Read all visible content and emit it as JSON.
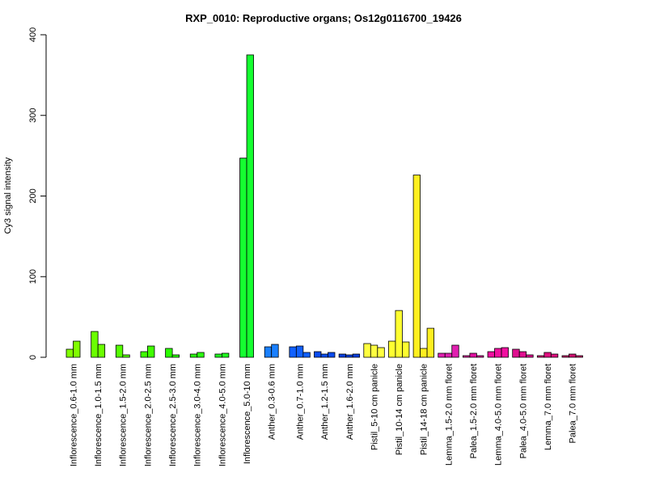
{
  "chart_data": {
    "type": "bar",
    "title": "RXP_0010: Reproductive organs; Os12g0116700_19426",
    "xlabel": "",
    "ylabel": "Cy3 signal intensity",
    "ylim": [
      0,
      400
    ],
    "yticks": [
      0,
      100,
      200,
      300,
      400
    ],
    "grid": false,
    "legend": "none",
    "groups": [
      {
        "label": "Inflorescence_0.6-1.0 mm",
        "color": "#80ff00",
        "values": [
          10,
          20
        ]
      },
      {
        "label": "Inflorescence_1.0-1.5 mm",
        "color": "#6aff00",
        "values": [
          32,
          16
        ]
      },
      {
        "label": "Inflorescence_1.5-2.0 mm",
        "color": "#55ff00",
        "values": [
          15,
          3
        ]
      },
      {
        "label": "Inflorescence_2.0-2.5 mm",
        "color": "#40ff00",
        "values": [
          7,
          14
        ]
      },
      {
        "label": "Inflorescence_2.5-3.0 mm",
        "color": "#2bff00",
        "values": [
          11,
          3
        ]
      },
      {
        "label": "Inflorescence_3.0-4.0 mm",
        "color": "#2bff10",
        "values": [
          4,
          6
        ]
      },
      {
        "label": "Inflorescence_4.0-5.0 mm",
        "color": "#20ff20",
        "values": [
          4,
          5
        ]
      },
      {
        "label": "Inflorescence_5.0-10 mm",
        "color": "#15ff30",
        "values": [
          247,
          375
        ]
      },
      {
        "label": "Anther_0.3-0.6 mm",
        "color": "#1a80ff",
        "values": [
          13,
          16
        ]
      },
      {
        "label": "Anther_0.7-1.0 mm",
        "color": "#1060ff",
        "values": [
          13,
          14,
          6
        ]
      },
      {
        "label": "Anther_1.2-1.5 mm",
        "color": "#0a4cf0",
        "values": [
          7,
          4,
          6
        ]
      },
      {
        "label": "Anther_1.6-2.0 mm",
        "color": "#0a40e0",
        "values": [
          4,
          3,
          4
        ]
      },
      {
        "label": "Pistil_5-10 cm panicle",
        "color": "#ffff40",
        "values": [
          17,
          15,
          12
        ]
      },
      {
        "label": "Pistil_10-14 cm panicle",
        "color": "#ffff30",
        "values": [
          20,
          58,
          19
        ]
      },
      {
        "label": "Pistil_14-18 cm panicle",
        "color": "#ffef20",
        "values": [
          226,
          11,
          36
        ]
      },
      {
        "label": "Lemma_1.5-2.0 mm floret",
        "color": "#e020b0",
        "values": [
          5,
          5,
          15
        ]
      },
      {
        "label": "Palea_1.5-2.0 mm floret",
        "color": "#e010a0",
        "values": [
          2,
          5,
          2
        ]
      },
      {
        "label": "Lemma_4.0-5.0 mm floret",
        "color": "#f010a0",
        "values": [
          7,
          11,
          12
        ]
      },
      {
        "label": "Palea_4.0-5.0 mm floret",
        "color": "#e01090",
        "values": [
          10,
          7,
          3
        ]
      },
      {
        "label": "Lemma_7.0 mm floret",
        "color": "#e01080",
        "values": [
          2,
          6,
          4
        ]
      },
      {
        "label": "Palea_7.0 mm floret",
        "color": "#d01070",
        "values": [
          2,
          4,
          2
        ]
      }
    ]
  }
}
